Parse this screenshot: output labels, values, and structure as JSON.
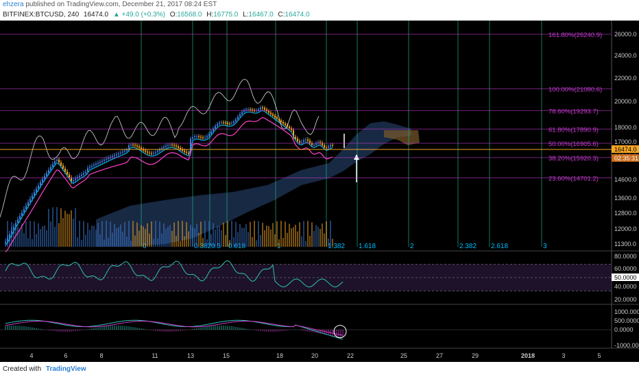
{
  "header": {
    "user": "ehzera",
    "published": "published on TradingView.com, December 21, 2017 08:24 EST"
  },
  "symbol_bar": {
    "symbol": "BITFINEX:BTCUSD, 240",
    "last": "16474.0",
    "change": "▲ +49.0 (+0.3%)",
    "open_label": "O:",
    "open": "16568.0",
    "high_label": "H:",
    "high": "16775.0",
    "low_label": "L:",
    "low": "16467.0",
    "close_label": "C:",
    "close": "16474.0"
  },
  "footer": {
    "created": "Created with",
    "brand": "TradingView"
  },
  "colors": {
    "background": "#000000",
    "price_line": "#f5a623",
    "fib_ext": "#c43ad0",
    "fib_time": "#1fae8a",
    "tenkan": "#00bfff",
    "kijun": "#ff44cc",
    "cloud": "#2b4a7a",
    "cloud_dark": "#7a5a2a",
    "rsi": "#2ec4b6",
    "macd": "#2ec4b6",
    "signal": "#d43ad0"
  },
  "chart_data": [
    {
      "type": "candlestick",
      "panel": "price",
      "y_axis_ticks": [
        "26000.0",
        "24000.0",
        "22000.0",
        "20000.0",
        "18000.0",
        "17000.0",
        "16000.0",
        "14600.0",
        "13600.0",
        "12800.0",
        "12000.0",
        "11300.0"
      ],
      "y_axis_values": [
        26000,
        24000,
        22000,
        20000,
        18000,
        17000,
        16000,
        14600,
        13600,
        12800,
        12000,
        11300
      ],
      "x_axis_labels": [
        "4",
        "6",
        "8",
        "11",
        "13",
        "15",
        "18",
        "20",
        "22",
        "25",
        "27",
        "29",
        "2018",
        "3",
        "5"
      ],
      "fib_levels": [
        {
          "label": "161.80%(26240.9)",
          "value": 26240.9
        },
        {
          "label": "100.00%(21080.6)",
          "value": 21080.6
        },
        {
          "label": "78.60%(19293.7)",
          "value": 19293.7
        },
        {
          "label": "61.80%(17890.9)",
          "value": 17890.9
        },
        {
          "label": "50.00%(16905.6)",
          "value": 16905.6
        },
        {
          "label": "38.20%(15920.3)",
          "value": 15920.3
        },
        {
          "label": "23.60%(14701.2)",
          "value": 14701.2
        }
      ],
      "fib_time_labels": [
        "0",
        "0.382",
        "0.5",
        "0.618",
        "1",
        "1.382",
        "1.618",
        "2",
        "2.382",
        "2.618",
        "3"
      ],
      "price_marker": "16474.0",
      "countdown_marker": "02:35:31"
    },
    {
      "type": "line",
      "panel": "rsi",
      "y_axis_ticks": [
        "80.0000",
        "60.0000",
        "50.0000",
        "40.0000",
        "20.0000"
      ],
      "y_axis_values": [
        80,
        60,
        50,
        40,
        20
      ],
      "marker": "50.0000"
    },
    {
      "type": "line",
      "panel": "macd",
      "y_axis_ticks": [
        "1000.0000",
        "500.0000",
        "0.0000",
        "-1000.0000"
      ],
      "y_axis_values": [
        1000,
        500,
        0,
        -1000
      ]
    }
  ]
}
